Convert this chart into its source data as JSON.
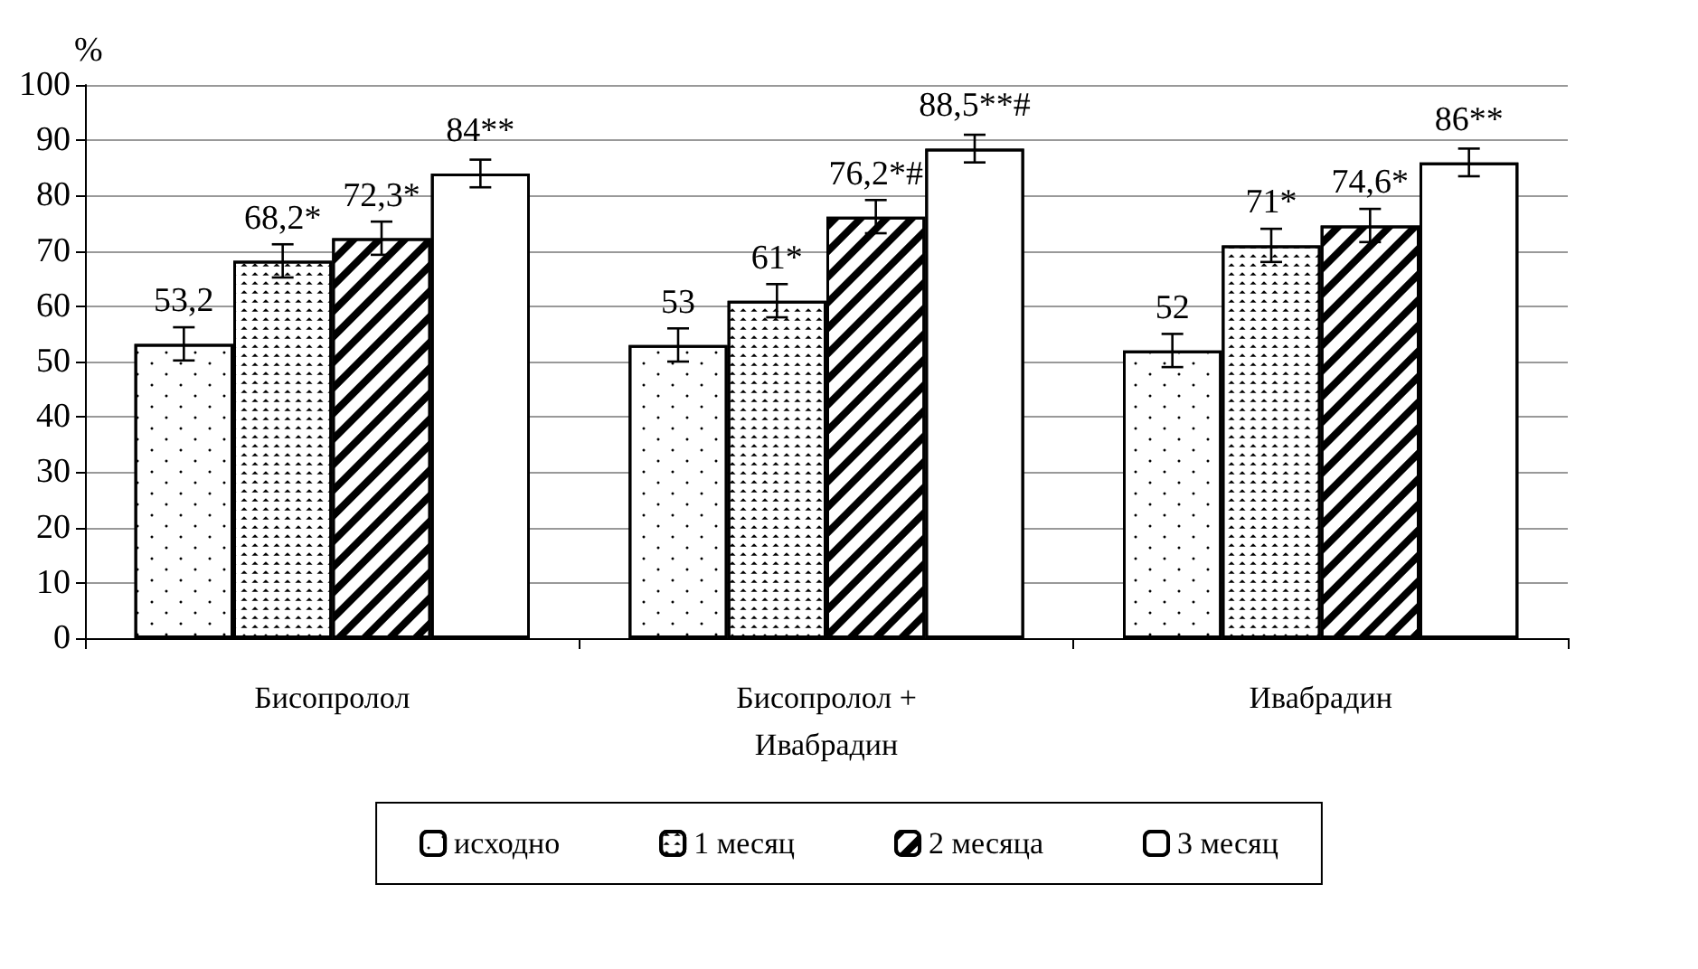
{
  "chart_data": {
    "type": "bar",
    "ylabel": "%",
    "categories": [
      "Бисопролол",
      "Бисопролол + Ивабрадин",
      "Ивабрадин"
    ],
    "series": [
      {
        "name": "исходно",
        "color": "#ffffff",
        "values": [
          53.2,
          53,
          52
        ],
        "errors": [
          3,
          3,
          3
        ],
        "value_labels": [
          "53,2",
          "53",
          "52"
        ]
      },
      {
        "name": "1 месяц",
        "color": "#ffffff",
        "values": [
          68.2,
          61,
          71
        ],
        "errors": [
          3,
          3,
          3
        ],
        "value_labels": [
          "68,2*",
          "61*",
          "71*"
        ]
      },
      {
        "name": "2 месяца",
        "color": "#ffffff",
        "values": [
          72.3,
          76.2,
          74.6
        ],
        "errors": [
          3,
          3,
          3
        ],
        "value_labels": [
          "72,3*",
          "76,2*#",
          "74,6*"
        ]
      },
      {
        "name": "3 месяц",
        "color": "#ffffff",
        "values": [
          84,
          88.5,
          86
        ],
        "errors": [
          2.5,
          2.5,
          2.5
        ],
        "value_labels": [
          "84**",
          "88,5**#",
          "86**"
        ]
      }
    ],
    "ylim": [
      0,
      100
    ],
    "yticks": [
      0,
      10,
      20,
      30,
      40,
      50,
      60,
      70,
      80,
      90,
      100
    ],
    "grid": "y",
    "legend": "bottom"
  }
}
